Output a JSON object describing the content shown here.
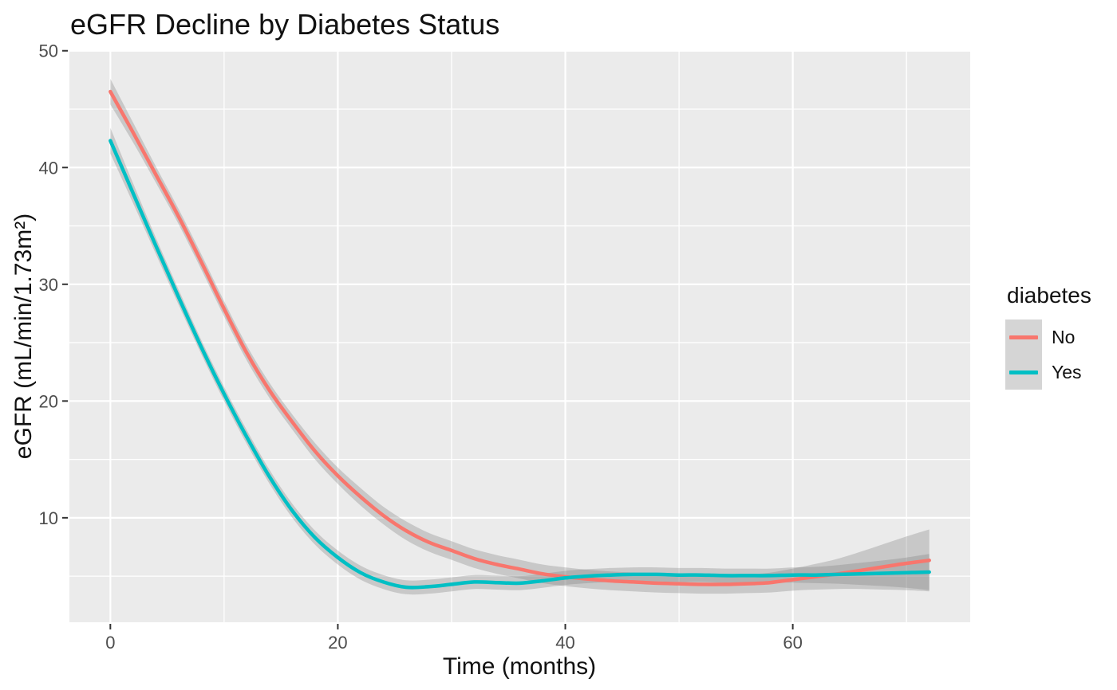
{
  "chart_data": {
    "type": "line",
    "title": "eGFR Decline by Diabetes Status",
    "xlabel": "Time (months)",
    "ylabel": "eGFR (mL/min/1.73m²)",
    "legend_title": "diabetes",
    "legend_position": "right",
    "grid": true,
    "panel_background": "#EBEBEB",
    "grid_color": "#FFFFFF",
    "tick_mark_color": "#333333",
    "tick_label_color": "#4D4D4D",
    "ribbon_color": "#7F7F7F",
    "ribbon_alpha": 0.32,
    "xlim": [
      -3.6,
      75.6
    ],
    "ylim": [
      1.05,
      50.05
    ],
    "x_ticks": [
      0,
      20,
      40,
      60
    ],
    "y_ticks": [
      10,
      20,
      30,
      40,
      50
    ],
    "x_minor": [
      10,
      30,
      50,
      70
    ],
    "y_minor": [
      5,
      15,
      25,
      35,
      45
    ],
    "x": [
      0,
      2,
      4,
      6,
      8,
      10,
      12,
      14,
      16,
      18,
      20,
      22,
      24,
      26,
      28,
      30,
      32,
      34,
      36,
      38,
      40,
      42,
      44,
      46,
      48,
      50,
      52,
      54,
      56,
      58,
      60,
      62,
      64,
      66,
      68,
      70,
      72
    ],
    "series": [
      {
        "name": "No",
        "color": "#F8766D",
        "values": [
          46.5,
          43.0,
          39.4,
          35.8,
          31.9,
          27.9,
          24.1,
          20.9,
          18.2,
          15.7,
          13.6,
          11.8,
          10.2,
          8.9,
          7.9,
          7.2,
          6.5,
          6.0,
          5.6,
          5.2,
          4.95,
          4.75,
          4.6,
          4.5,
          4.4,
          4.35,
          4.3,
          4.3,
          4.35,
          4.45,
          4.7,
          4.95,
          5.2,
          5.5,
          5.8,
          6.1,
          6.35
        ],
        "se": [
          1.1,
          0.85,
          0.7,
          0.65,
          0.65,
          0.65,
          0.65,
          0.65,
          0.65,
          0.7,
          0.7,
          0.75,
          0.75,
          0.8,
          0.8,
          0.8,
          0.8,
          0.8,
          0.8,
          0.8,
          0.8,
          0.8,
          0.8,
          0.8,
          0.8,
          0.8,
          0.8,
          0.8,
          0.8,
          0.85,
          0.95,
          1.1,
          1.3,
          1.6,
          1.95,
          2.3,
          2.65
        ]
      },
      {
        "name": "Yes",
        "color": "#00BFC4",
        "values": [
          42.3,
          37.8,
          33.3,
          28.9,
          24.6,
          20.6,
          16.9,
          13.5,
          10.6,
          8.3,
          6.6,
          5.3,
          4.5,
          4.05,
          4.1,
          4.3,
          4.5,
          4.45,
          4.4,
          4.6,
          4.85,
          5.0,
          5.1,
          5.15,
          5.15,
          5.1,
          5.1,
          5.05,
          5.05,
          5.05,
          5.1,
          5.1,
          5.15,
          5.2,
          5.25,
          5.3,
          5.35
        ],
        "se": [
          1.1,
          0.85,
          0.7,
          0.65,
          0.6,
          0.6,
          0.6,
          0.6,
          0.6,
          0.6,
          0.6,
          0.6,
          0.6,
          0.6,
          0.6,
          0.6,
          0.6,
          0.6,
          0.6,
          0.6,
          0.6,
          0.6,
          0.6,
          0.6,
          0.6,
          0.6,
          0.6,
          0.6,
          0.6,
          0.6,
          0.65,
          0.7,
          0.8,
          0.95,
          1.1,
          1.3,
          1.55
        ]
      }
    ]
  }
}
